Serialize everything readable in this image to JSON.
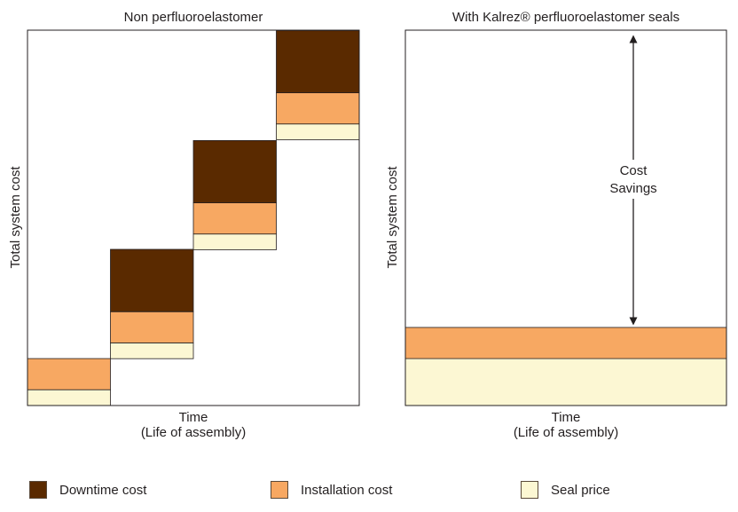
{
  "colors": {
    "downtime": "#5a2a00",
    "installation": "#f7a862",
    "seal": "#fcf7d3",
    "frame": "#231f20"
  },
  "chart_data": [
    {
      "type": "bar",
      "stacked": true,
      "title": "Non perfluoroelastomer",
      "ylabel": "Total system cost",
      "xlabel": [
        "Time",
        "(Life of assembly)"
      ],
      "ylim": [
        0,
        100
      ],
      "categories": [
        "",
        "",
        "",
        ""
      ],
      "series": [
        {
          "key": "seal",
          "name": "Seal price",
          "base": [
            0,
            12.5,
            41.5,
            70.8
          ],
          "values": [
            4.2,
            4.2,
            4.2,
            4.2
          ]
        },
        {
          "key": "installation",
          "name": "Installation cost",
          "values": [
            8.3,
            8.3,
            8.3,
            8.3
          ]
        },
        {
          "key": "downtime",
          "name": "Downtime cost",
          "values": [
            0,
            16.6,
            16.6,
            16.6
          ]
        }
      ]
    },
    {
      "type": "bar",
      "stacked": true,
      "title": "With Kalrez® perfluoroelastomer seals",
      "ylabel": "Total system cost",
      "xlabel": [
        "Time",
        "(Life of assembly)"
      ],
      "ylim": [
        0,
        100
      ],
      "categories": [
        ""
      ],
      "series": [
        {
          "key": "seal",
          "name": "Seal price",
          "base": [
            0
          ],
          "values": [
            12.5
          ]
        },
        {
          "key": "installation",
          "name": "Installation cost",
          "values": [
            8.3
          ]
        }
      ],
      "annotation": {
        "lines": [
          "Cost",
          "Savings"
        ],
        "from": 20.8,
        "to": 100
      }
    }
  ],
  "legend": [
    {
      "key": "downtime",
      "label": "Downtime cost"
    },
    {
      "key": "installation",
      "label": "Installation cost"
    },
    {
      "key": "seal",
      "label": "Seal price"
    }
  ]
}
